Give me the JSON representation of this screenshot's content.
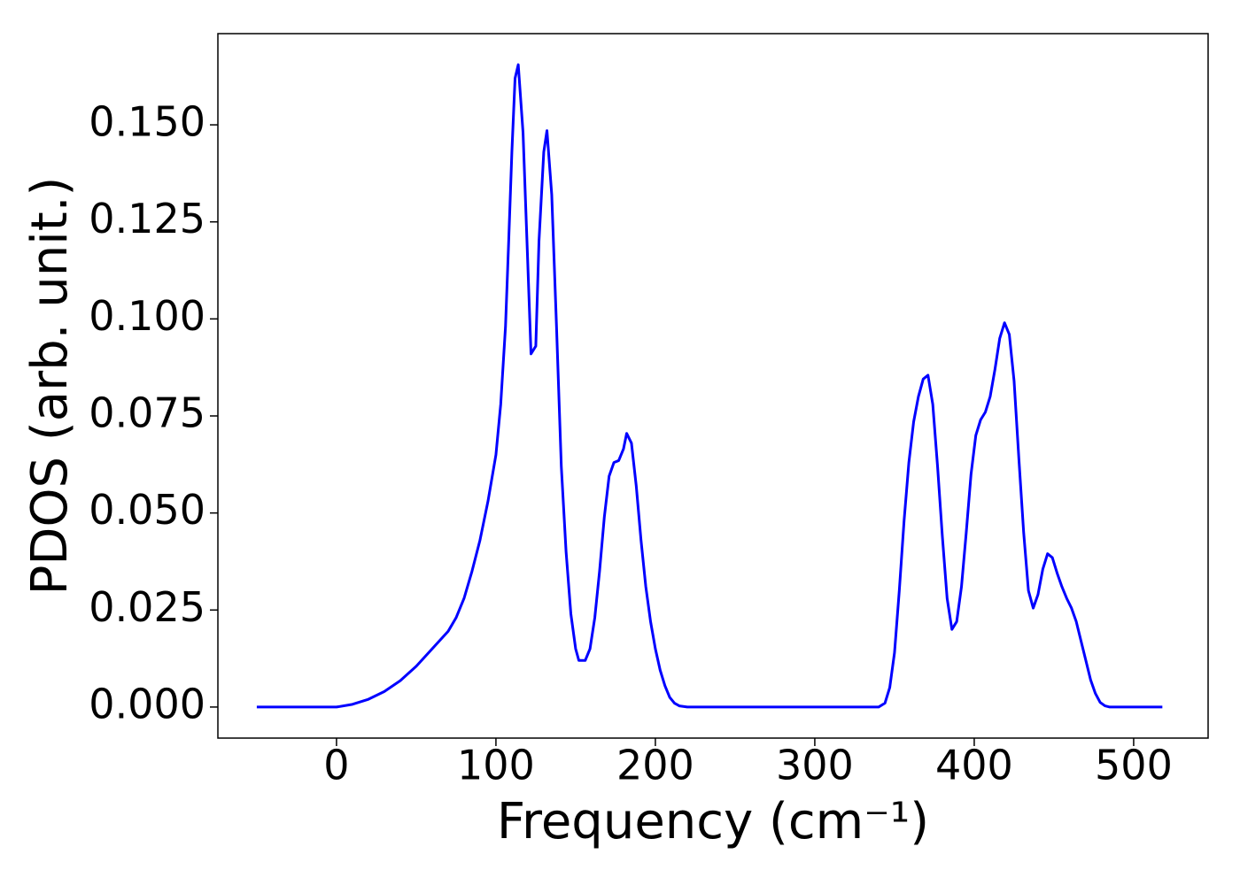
{
  "chart_data": {
    "type": "line",
    "xlabel": "Frequency (cm⁻¹)",
    "ylabel": "PDOS (arb. unit.)",
    "xlim": [
      -74.4,
      546.7
    ],
    "ylim": [
      -0.008,
      0.1735
    ],
    "xticks": [
      0,
      100,
      200,
      300,
      400,
      500
    ],
    "yticks": [
      {
        "value": 0,
        "label": "0.000"
      },
      {
        "value": 0.025,
        "label": "0.025"
      },
      {
        "value": 0.05,
        "label": "0.050"
      },
      {
        "value": 0.075,
        "label": "0.075"
      },
      {
        "value": 0.1,
        "label": "0.100"
      },
      {
        "value": 0.125,
        "label": "0.125"
      },
      {
        "value": 0.15,
        "label": "0.150"
      }
    ],
    "grid": false,
    "x": [
      -50,
      0,
      10,
      20,
      30,
      40,
      50,
      60,
      70,
      75,
      80,
      85,
      90,
      95,
      100,
      103,
      106,
      108,
      110,
      112,
      114,
      117,
      120,
      122,
      125,
      127,
      130,
      132,
      135,
      138,
      141,
      144,
      147,
      150,
      152,
      156,
      159,
      162,
      165,
      168,
      171,
      174,
      177,
      180,
      182,
      185,
      188,
      191,
      194,
      197,
      200,
      203,
      206,
      209,
      212,
      215,
      220,
      340,
      344,
      347,
      350,
      353,
      356,
      359,
      362,
      365,
      368,
      371,
      374,
      377,
      380,
      383,
      386,
      389,
      392,
      395,
      398,
      401,
      404,
      407,
      410,
      413,
      416,
      419,
      422,
      425,
      428,
      431,
      434,
      437,
      440,
      443,
      446,
      449,
      452,
      455,
      458,
      461,
      464,
      467,
      470,
      473,
      476,
      479,
      482,
      485,
      518
    ],
    "series": [
      {
        "name": "PDOS",
        "color": "#0000ff",
        "values": [
          0,
          0,
          0.0007,
          0.002,
          0.004,
          0.0068,
          0.0105,
          0.015,
          0.0195,
          0.023,
          0.028,
          0.035,
          0.043,
          0.053,
          0.065,
          0.078,
          0.098,
          0.12,
          0.143,
          0.162,
          0.1655,
          0.148,
          0.114,
          0.091,
          0.093,
          0.12,
          0.143,
          0.1485,
          0.132,
          0.098,
          0.062,
          0.04,
          0.024,
          0.015,
          0.012,
          0.012,
          0.015,
          0.023,
          0.035,
          0.049,
          0.0595,
          0.063,
          0.0635,
          0.0665,
          0.0705,
          0.068,
          0.057,
          0.043,
          0.031,
          0.022,
          0.015,
          0.0095,
          0.0055,
          0.0025,
          0.001,
          0.0003,
          0,
          0,
          0.001,
          0.005,
          0.014,
          0.03,
          0.048,
          0.063,
          0.0735,
          0.08,
          0.0845,
          0.0855,
          0.078,
          0.062,
          0.044,
          0.028,
          0.02,
          0.022,
          0.031,
          0.045,
          0.06,
          0.07,
          0.074,
          0.076,
          0.08,
          0.087,
          0.095,
          0.099,
          0.096,
          0.084,
          0.064,
          0.045,
          0.03,
          0.0255,
          0.029,
          0.0355,
          0.0395,
          0.0385,
          0.0345,
          0.031,
          0.028,
          0.0255,
          0.022,
          0.017,
          0.012,
          0.007,
          0.0035,
          0.0012,
          0.0003,
          0,
          0
        ]
      }
    ]
  }
}
